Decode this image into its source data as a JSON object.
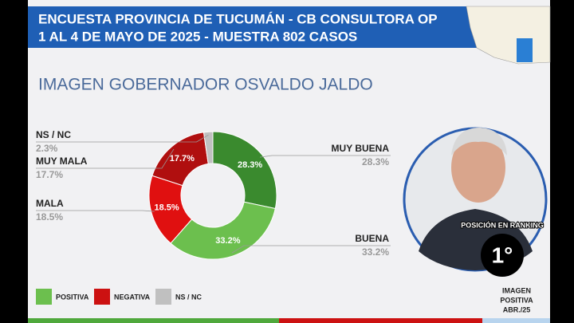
{
  "chart_data": {
    "type": "pie",
    "header": [
      "ENCUESTA PROVINCIA DE TUCUMÁN - CB CONSULTORA OP",
      "1 AL 4 DE MAYO DE 2025 - MUESTRA 802 CASOS"
    ],
    "title": "IMAGEN GOBERNADOR  OSVALDO JALDO",
    "categories": [
      "MUY BUENA",
      "BUENA",
      "MALA",
      "MUY MALA",
      "NS / NC"
    ],
    "values": [
      28.3,
      33.2,
      18.5,
      17.7,
      2.3
    ],
    "value_labels": [
      "28.3%",
      "33.2%",
      "18.5%",
      "17.7%",
      "2.3%"
    ],
    "colors": [
      "#3a8a2e",
      "#6cbf4e",
      "#e01010",
      "#b00f0f",
      "#c0c0c0"
    ],
    "legend": [
      {
        "name": "POSITIVA",
        "color": "#6cbf4e"
      },
      {
        "name": "NEGATIVA",
        "color": "#cc1111"
      },
      {
        "name": "NS / NC",
        "color": "#c0c0c0"
      }
    ],
    "ranking_label": "POSICIÓN EN RANKING",
    "ranking": "1°",
    "ranking_note": [
      "IMAGEN",
      "POSITIVA",
      "ABR./25"
    ]
  }
}
